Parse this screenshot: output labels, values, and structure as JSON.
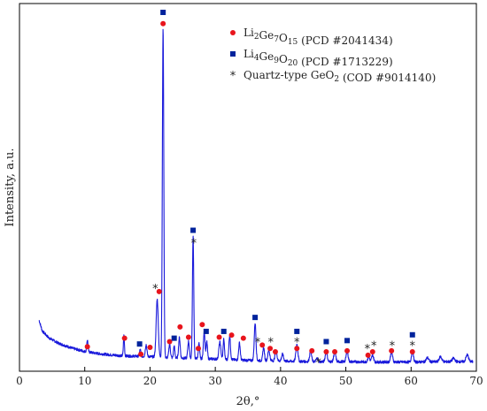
{
  "chart_data": {
    "type": "line",
    "xlabel": "2θ,°",
    "ylabel": "Intensity, a.u.",
    "xlim": [
      0,
      70
    ],
    "x_ticks": [
      0,
      10,
      20,
      30,
      40,
      50,
      60,
      70
    ],
    "y_tick_labels": "none",
    "grid": false,
    "legend_placement": "top-right",
    "colors": {
      "curve": "#1a1adb",
      "li2ge7o15": "#e8141c",
      "li4ge9o20": "#00239c",
      "quartz": "#222222"
    },
    "series": [
      {
        "type": "line",
        "baseline_points": [
          [
            3.0,
            0.15
          ],
          [
            3.5,
            0.118
          ],
          [
            4.5,
            0.098
          ],
          [
            6,
            0.082
          ],
          [
            8,
            0.068
          ],
          [
            10,
            0.058
          ],
          [
            12,
            0.052
          ],
          [
            14,
            0.048
          ],
          [
            16,
            0.045
          ],
          [
            18,
            0.044
          ],
          [
            20,
            0.043
          ],
          [
            22,
            0.04
          ],
          [
            26,
            0.038
          ],
          [
            30,
            0.036
          ],
          [
            35,
            0.032
          ],
          [
            40,
            0.03
          ],
          [
            45,
            0.028
          ],
          [
            50,
            0.028
          ],
          [
            55,
            0.027
          ],
          [
            60,
            0.027
          ],
          [
            65,
            0.028
          ],
          [
            69.5,
            0.028
          ]
        ],
        "peaks": [
          [
            10.4,
            0.035,
            0.1
          ],
          [
            16.0,
            0.06,
            0.08
          ],
          [
            18.5,
            0.02,
            0.1
          ],
          [
            19.4,
            0.035,
            0.12
          ],
          [
            21.1,
            0.17,
            0.16
          ],
          [
            22.0,
            0.965,
            0.11
          ],
          [
            23.0,
            0.04,
            0.12
          ],
          [
            23.7,
            0.035,
            0.1
          ],
          [
            24.5,
            0.06,
            0.12
          ],
          [
            25.9,
            0.05,
            0.12
          ],
          [
            26.6,
            0.36,
            0.1
          ],
          [
            27.5,
            0.045,
            0.1
          ],
          [
            28.3,
            0.08,
            0.12
          ],
          [
            28.7,
            0.05,
            0.1
          ],
          [
            30.7,
            0.05,
            0.15
          ],
          [
            31.3,
            0.06,
            0.1
          ],
          [
            32.2,
            0.07,
            0.12
          ],
          [
            33.7,
            0.05,
            0.12
          ],
          [
            36.1,
            0.11,
            0.13
          ],
          [
            37.4,
            0.04,
            0.12
          ],
          [
            38.2,
            0.03,
            0.15
          ],
          [
            39.3,
            0.03,
            0.15
          ],
          [
            40.3,
            0.02,
            0.15
          ],
          [
            42.5,
            0.05,
            0.15
          ],
          [
            44.6,
            0.03,
            0.15
          ],
          [
            45.6,
            0.01,
            0.15
          ],
          [
            47.0,
            0.03,
            0.15
          ],
          [
            48.3,
            0.03,
            0.15
          ],
          [
            50.2,
            0.03,
            0.15
          ],
          [
            53.5,
            0.015,
            0.15
          ],
          [
            54.1,
            0.02,
            0.15
          ],
          [
            57.0,
            0.03,
            0.15
          ],
          [
            60.2,
            0.03,
            0.15
          ],
          [
            62.5,
            0.012,
            0.2
          ],
          [
            64.5,
            0.015,
            0.2
          ],
          [
            66.5,
            0.01,
            0.2
          ],
          [
            68.6,
            0.02,
            0.2
          ]
        ]
      }
    ],
    "markers": [
      {
        "phase": "li2ge7o15",
        "x": 10.4,
        "y": 0.072
      },
      {
        "phase": "li2ge7o15",
        "x": 16.1,
        "y": 0.097
      },
      {
        "phase": "li2ge7o15",
        "x": 18.6,
        "y": 0.05
      },
      {
        "phase": "li2ge7o15",
        "x": 20.0,
        "y": 0.07
      },
      {
        "phase": "li2ge7o15",
        "x": 21.4,
        "y": 0.234
      },
      {
        "phase": "li2ge7o15",
        "x": 22.0,
        "y": 1.021
      },
      {
        "phase": "li2ge7o15",
        "x": 23.0,
        "y": 0.087
      },
      {
        "phase": "li2ge7o15",
        "x": 24.6,
        "y": 0.13
      },
      {
        "phase": "li2ge7o15",
        "x": 25.9,
        "y": 0.1
      },
      {
        "phase": "li2ge7o15",
        "x": 27.4,
        "y": 0.067
      },
      {
        "phase": "li2ge7o15",
        "x": 28.0,
        "y": 0.137
      },
      {
        "phase": "li2ge7o15",
        "x": 30.6,
        "y": 0.1
      },
      {
        "phase": "li2ge7o15",
        "x": 32.5,
        "y": 0.106
      },
      {
        "phase": "li2ge7o15",
        "x": 34.3,
        "y": 0.097
      },
      {
        "phase": "li2ge7o15",
        "x": 37.2,
        "y": 0.077
      },
      {
        "phase": "li2ge7o15",
        "x": 38.4,
        "y": 0.067
      },
      {
        "phase": "li2ge7o15",
        "x": 39.2,
        "y": 0.057
      },
      {
        "phase": "li2ge7o15",
        "x": 42.5,
        "y": 0.067
      },
      {
        "phase": "li2ge7o15",
        "x": 44.8,
        "y": 0.06
      },
      {
        "phase": "li2ge7o15",
        "x": 47.0,
        "y": 0.057
      },
      {
        "phase": "li2ge7o15",
        "x": 48.3,
        "y": 0.057
      },
      {
        "phase": "li2ge7o15",
        "x": 50.2,
        "y": 0.06
      },
      {
        "phase": "li2ge7o15",
        "x": 53.4,
        "y": 0.047
      },
      {
        "phase": "li2ge7o15",
        "x": 54.1,
        "y": 0.057
      },
      {
        "phase": "li2ge7o15",
        "x": 57.0,
        "y": 0.06
      },
      {
        "phase": "li2ge7o15",
        "x": 60.2,
        "y": 0.057
      },
      {
        "phase": "li4ge9o20",
        "x": 18.4,
        "y": 0.08
      },
      {
        "phase": "li4ge9o20",
        "x": 23.7,
        "y": 0.097
      },
      {
        "phase": "li4ge9o20",
        "x": 22.0,
        "y": 1.054
      },
      {
        "phase": "li4ge9o20",
        "x": 26.6,
        "y": 0.414
      },
      {
        "phase": "li4ge9o20",
        "x": 28.6,
        "y": 0.117
      },
      {
        "phase": "li4ge9o20",
        "x": 31.3,
        "y": 0.117
      },
      {
        "phase": "li4ge9o20",
        "x": 36.1,
        "y": 0.158
      },
      {
        "phase": "li4ge9o20",
        "x": 42.5,
        "y": 0.117
      },
      {
        "phase": "li4ge9o20",
        "x": 47.0,
        "y": 0.087
      },
      {
        "phase": "li4ge9o20",
        "x": 50.2,
        "y": 0.09
      },
      {
        "phase": "li4ge9o20",
        "x": 60.2,
        "y": 0.107
      },
      {
        "phase": "quartz",
        "x": 20.8,
        "y": 0.244
      },
      {
        "phase": "quartz",
        "x": 26.7,
        "y": 0.378
      },
      {
        "phase": "quartz",
        "x": 36.5,
        "y": 0.087
      },
      {
        "phase": "quartz",
        "x": 38.5,
        "y": 0.087
      },
      {
        "phase": "quartz",
        "x": 42.5,
        "y": 0.087
      },
      {
        "phase": "quartz",
        "x": 45.8,
        "y": 0.027
      },
      {
        "phase": "quartz",
        "x": 53.3,
        "y": 0.067
      },
      {
        "phase": "quartz",
        "x": 54.3,
        "y": 0.077
      },
      {
        "phase": "quartz",
        "x": 57.1,
        "y": 0.077
      },
      {
        "phase": "quartz",
        "x": 60.2,
        "y": 0.077
      }
    ],
    "legend": [
      {
        "phase": "li2ge7o15",
        "marker": "circle",
        "formula": [
          [
            "Li",
            ""
          ],
          [
            "2",
            "sub"
          ],
          [
            "Ge",
            ""
          ],
          [
            "7",
            "sub"
          ],
          [
            "O",
            ""
          ],
          [
            "15",
            "sub"
          ]
        ],
        "ref": " (PCD #2041434)"
      },
      {
        "phase": "li4ge9o20",
        "marker": "square",
        "formula": [
          [
            "Li",
            ""
          ],
          [
            "4",
            "sub"
          ],
          [
            "Ge",
            ""
          ],
          [
            "9",
            "sub"
          ],
          [
            "O",
            ""
          ],
          [
            "20",
            "sub"
          ]
        ],
        "ref": " (PCD #1713229)"
      },
      {
        "phase": "quartz",
        "marker": "star",
        "formula": [
          [
            "Quartz-type GeO",
            ""
          ],
          [
            "2",
            "sub"
          ]
        ],
        "ref": " (COD #9014140)"
      }
    ]
  }
}
